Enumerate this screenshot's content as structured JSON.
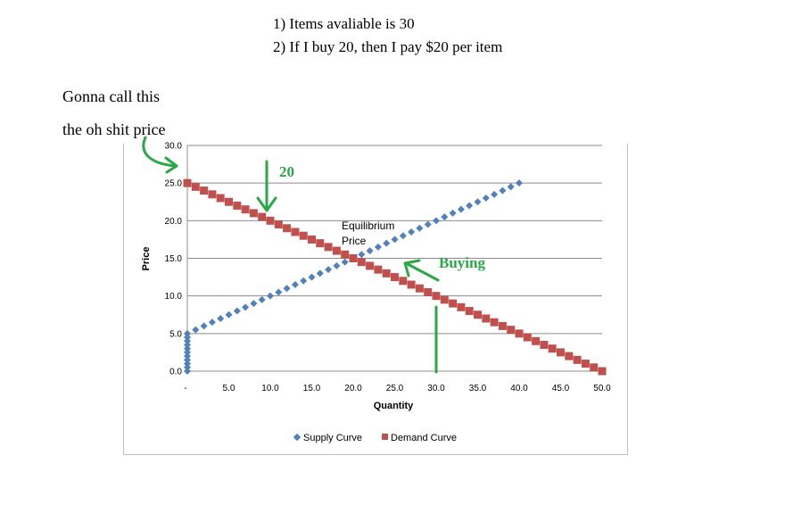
{
  "notes": {
    "line1": "1) Items avaliable is 30",
    "line2": "2) If I buy 20, then I pay $20 per item",
    "left_line1": "Gonna call this",
    "left_line2": "the oh shit price"
  },
  "annotations": {
    "twenty": "20",
    "buying": "Buying",
    "equilibrium_line1": "Equilibrium",
    "equilibrium_line2": "Price"
  },
  "colors": {
    "supply": "#4f81bd",
    "demand": "#c0504d",
    "annotation_green": "#2aa845",
    "gridline": "#8c8c8c"
  },
  "chart_data": {
    "type": "scatter",
    "xlabel": "Quantity",
    "ylabel": "Price",
    "xlim": [
      0,
      50
    ],
    "ylim": [
      0,
      30
    ],
    "x_ticks": [
      "-",
      "5.0",
      "10.0",
      "15.0",
      "20.0",
      "25.0",
      "30.0",
      "35.0",
      "40.0",
      "45.0",
      "50.0"
    ],
    "y_ticks": [
      "0.0",
      "5.0",
      "10.0",
      "15.0",
      "20.0",
      "25.0",
      "30.0"
    ],
    "grid": true,
    "legend_position": "bottom",
    "series": [
      {
        "name": "Supply Curve",
        "description": "Vertical points at quantity 0 for price 0 to 5, then price = 5 + 0.5 * quantity up to quantity 40",
        "vertical_segment": {
          "x": 0,
          "y_from": 0,
          "y_to": 5,
          "step": 0.5
        },
        "line_segment": {
          "x_from": 0,
          "x_to": 40,
          "step": 1,
          "intercept": 5,
          "slope": 0.5
        }
      },
      {
        "name": "Demand Curve",
        "description": "price = 25 - 0.5 * quantity, quantity 0 to 50",
        "line_segment": {
          "x_from": 0,
          "x_to": 50,
          "step": 1,
          "intercept": 25,
          "slope": -0.5
        }
      }
    ]
  }
}
